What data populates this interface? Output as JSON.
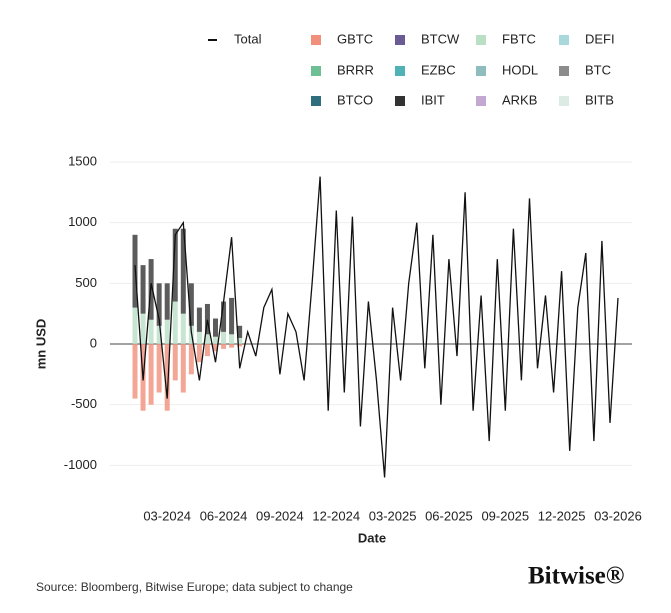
{
  "chart_data": {
    "type": "bar-line",
    "x_label": "Date",
    "y_label": "mn USD",
    "source": "Source: Bloomberg, Bitwise Europe; data subject to change",
    "logo": "Bitwise®",
    "categories": [
      null,
      null,
      null,
      null,
      "03-2024",
      null,
      null,
      null,
      null,
      null,
      null,
      "06-2024",
      null,
      null,
      null,
      null,
      null,
      null,
      "09-2024",
      null,
      null,
      null,
      null,
      null,
      null,
      "12-2024",
      null,
      null,
      null,
      null,
      null,
      null,
      "03-2025",
      null,
      null,
      null,
      null,
      null,
      null,
      "06-2025",
      null,
      null,
      null,
      null,
      null,
      null,
      "09-2025",
      null,
      null,
      null,
      null,
      null,
      null,
      "12-2025",
      null,
      null,
      null,
      null,
      null,
      null,
      "03-2026"
    ],
    "ylim": [
      -1200,
      1500
    ],
    "yticks": [
      -1000,
      -500,
      0,
      500,
      1000,
      1500
    ],
    "grid": true,
    "series": [
      {
        "name": "Total",
        "type": "line",
        "color": "#111111",
        "values": [
          650,
          -300,
          500,
          200,
          -450,
          900,
          1000,
          100,
          -300,
          200,
          -150,
          350,
          880,
          -200,
          100,
          -100,
          300,
          450,
          -250,
          250,
          100,
          -300,
          500,
          1380,
          -550,
          1100,
          -400,
          1050,
          -680,
          350,
          -300,
          -1100,
          300,
          -300,
          500,
          1000,
          -200,
          900,
          -500,
          700,
          -100,
          1250,
          -550,
          400,
          -800,
          700,
          -550,
          950,
          -300,
          1200,
          -200,
          400,
          -400,
          600,
          -880,
          300,
          750,
          -800,
          850,
          -650,
          380
        ]
      },
      {
        "name": "GBTC",
        "color": "#f0907c",
        "values": [
          -450,
          -550,
          -500,
          -400,
          -550,
          -300,
          -400,
          -250,
          -150,
          -100,
          -60,
          -40,
          -30,
          -20,
          0,
          0,
          0,
          0,
          0,
          0,
          0,
          0,
          0,
          0,
          0,
          0,
          0,
          0,
          0,
          0,
          0,
          0,
          0,
          0,
          0,
          0,
          0,
          0,
          0,
          0,
          0,
          0,
          0,
          0,
          0,
          0,
          0,
          0,
          0,
          0,
          0,
          0,
          0,
          0,
          0,
          0,
          0,
          0,
          0,
          0,
          0
        ]
      },
      {
        "name": "BTCW",
        "color": "#6b5b95",
        "values": [
          0,
          0,
          0,
          0,
          0,
          0,
          0,
          0,
          0,
          0,
          0,
          0,
          0,
          0,
          0,
          0,
          0,
          0,
          0,
          0,
          0,
          0,
          0,
          0,
          0,
          0,
          0,
          0,
          0,
          0,
          0,
          0,
          0,
          0,
          0,
          0,
          0,
          0,
          0,
          0,
          0,
          0,
          0,
          0,
          0,
          0,
          0,
          0,
          0,
          0,
          0,
          0,
          0,
          0,
          0,
          0,
          0,
          0,
          0,
          0,
          0
        ]
      },
      {
        "name": "FBTC",
        "color": "#b9dfc4",
        "values": [
          300,
          250,
          200,
          150,
          200,
          350,
          250,
          150,
          100,
          80,
          60,
          100,
          80,
          50,
          0,
          0,
          0,
          0,
          0,
          0,
          0,
          0,
          0,
          0,
          0,
          0,
          0,
          0,
          0,
          0,
          0,
          0,
          0,
          0,
          0,
          0,
          0,
          0,
          0,
          0,
          0,
          0,
          0,
          0,
          0,
          0,
          0,
          0,
          0,
          0,
          0,
          0,
          0,
          0,
          0,
          0,
          0,
          0,
          0,
          0,
          0
        ]
      },
      {
        "name": "DEFI",
        "color": "#a9d8dc",
        "values": [
          0,
          0,
          0,
          0,
          0,
          0,
          0,
          0,
          0,
          0,
          0,
          0,
          0,
          0,
          0,
          0,
          0,
          0,
          0,
          0,
          0,
          0,
          0,
          0,
          0,
          0,
          0,
          0,
          0,
          0,
          0,
          0,
          0,
          0,
          0,
          0,
          0,
          0,
          0,
          0,
          0,
          0,
          0,
          0,
          0,
          0,
          0,
          0,
          0,
          0,
          0,
          0,
          0,
          0,
          0,
          0,
          0,
          0,
          0,
          0,
          0
        ]
      },
      {
        "name": "BRRR",
        "color": "#6fbf95",
        "values": [
          0,
          0,
          0,
          0,
          0,
          0,
          0,
          0,
          0,
          0,
          0,
          0,
          0,
          0,
          0,
          0,
          0,
          0,
          0,
          0,
          0,
          0,
          0,
          0,
          0,
          0,
          0,
          0,
          0,
          0,
          0,
          0,
          0,
          0,
          0,
          0,
          0,
          0,
          0,
          0,
          0,
          0,
          0,
          0,
          0,
          0,
          0,
          0,
          0,
          0,
          0,
          0,
          0,
          0,
          0,
          0,
          0,
          0,
          0,
          0,
          0
        ]
      },
      {
        "name": "EZBC",
        "color": "#4fb3b6",
        "values": [
          0,
          0,
          0,
          0,
          0,
          0,
          0,
          0,
          0,
          0,
          0,
          0,
          0,
          0,
          0,
          0,
          0,
          0,
          0,
          0,
          0,
          0,
          0,
          0,
          0,
          0,
          0,
          0,
          0,
          0,
          0,
          0,
          0,
          0,
          0,
          0,
          0,
          0,
          0,
          0,
          0,
          0,
          0,
          0,
          0,
          0,
          0,
          0,
          0,
          0,
          0,
          0,
          0,
          0,
          0,
          0,
          0,
          0,
          0,
          0,
          0
        ]
      },
      {
        "name": "HODL",
        "color": "#8fbcbc",
        "values": [
          0,
          0,
          0,
          0,
          0,
          0,
          0,
          0,
          0,
          0,
          0,
          0,
          0,
          0,
          0,
          0,
          0,
          0,
          0,
          0,
          0,
          0,
          0,
          0,
          0,
          0,
          0,
          0,
          0,
          0,
          0,
          0,
          0,
          0,
          0,
          0,
          0,
          0,
          0,
          0,
          0,
          0,
          0,
          0,
          0,
          0,
          0,
          0,
          0,
          0,
          0,
          0,
          0,
          0,
          0,
          0,
          0,
          0,
          0,
          0,
          0
        ]
      },
      {
        "name": "BTC",
        "color": "#8c8c8c",
        "values": [
          0,
          0,
          0,
          0,
          0,
          0,
          0,
          0,
          0,
          0,
          0,
          0,
          0,
          0,
          0,
          0,
          0,
          0,
          0,
          0,
          0,
          0,
          0,
          0,
          0,
          0,
          0,
          0,
          0,
          0,
          0,
          0,
          0,
          0,
          0,
          0,
          0,
          0,
          0,
          0,
          0,
          0,
          0,
          0,
          0,
          0,
          0,
          0,
          0,
          0,
          0,
          0,
          0,
          0,
          0,
          0,
          0,
          0,
          0,
          0,
          0
        ]
      },
      {
        "name": "BTCO",
        "color": "#2f6f7d",
        "values": [
          0,
          0,
          0,
          0,
          0,
          0,
          0,
          0,
          0,
          0,
          0,
          0,
          0,
          0,
          0,
          0,
          0,
          0,
          0,
          0,
          0,
          0,
          0,
          0,
          0,
          0,
          0,
          0,
          0,
          0,
          0,
          0,
          0,
          0,
          0,
          0,
          0,
          0,
          0,
          0,
          0,
          0,
          0,
          0,
          0,
          0,
          0,
          0,
          0,
          0,
          0,
          0,
          0,
          0,
          0,
          0,
          0,
          0,
          0,
          0,
          0
        ]
      },
      {
        "name": "IBIT",
        "color": "#333333",
        "values": [
          600,
          400,
          500,
          350,
          300,
          600,
          700,
          350,
          200,
          250,
          150,
          250,
          300,
          100,
          0,
          0,
          0,
          0,
          0,
          0,
          0,
          0,
          0,
          0,
          0,
          0,
          0,
          0,
          0,
          0,
          0,
          0,
          0,
          0,
          0,
          0,
          0,
          0,
          0,
          0,
          0,
          0,
          0,
          0,
          0,
          0,
          0,
          0,
          0,
          0,
          0,
          0,
          0,
          0,
          0,
          0,
          0,
          0,
          0,
          0,
          0
        ]
      },
      {
        "name": "ARKB",
        "color": "#c3a8d1",
        "values": [
          0,
          0,
          0,
          0,
          0,
          0,
          0,
          0,
          0,
          0,
          0,
          0,
          0,
          0,
          0,
          0,
          0,
          0,
          0,
          0,
          0,
          0,
          0,
          0,
          0,
          0,
          0,
          0,
          0,
          0,
          0,
          0,
          0,
          0,
          0,
          0,
          0,
          0,
          0,
          0,
          0,
          0,
          0,
          0,
          0,
          0,
          0,
          0,
          0,
          0,
          0,
          0,
          0,
          0,
          0,
          0,
          0,
          0,
          0,
          0,
          0
        ]
      },
      {
        "name": "BITB",
        "color": "#dcece4",
        "values": [
          0,
          0,
          0,
          0,
          0,
          0,
          0,
          0,
          0,
          0,
          0,
          0,
          0,
          0,
          0,
          0,
          0,
          0,
          0,
          0,
          0,
          0,
          0,
          0,
          0,
          0,
          0,
          0,
          0,
          0,
          0,
          0,
          0,
          0,
          0,
          0,
          0,
          0,
          0,
          0,
          0,
          0,
          0,
          0,
          0,
          0,
          0,
          0,
          0,
          0,
          0,
          0,
          0,
          0,
          0,
          0,
          0,
          0,
          0,
          0,
          0
        ]
      }
    ]
  }
}
